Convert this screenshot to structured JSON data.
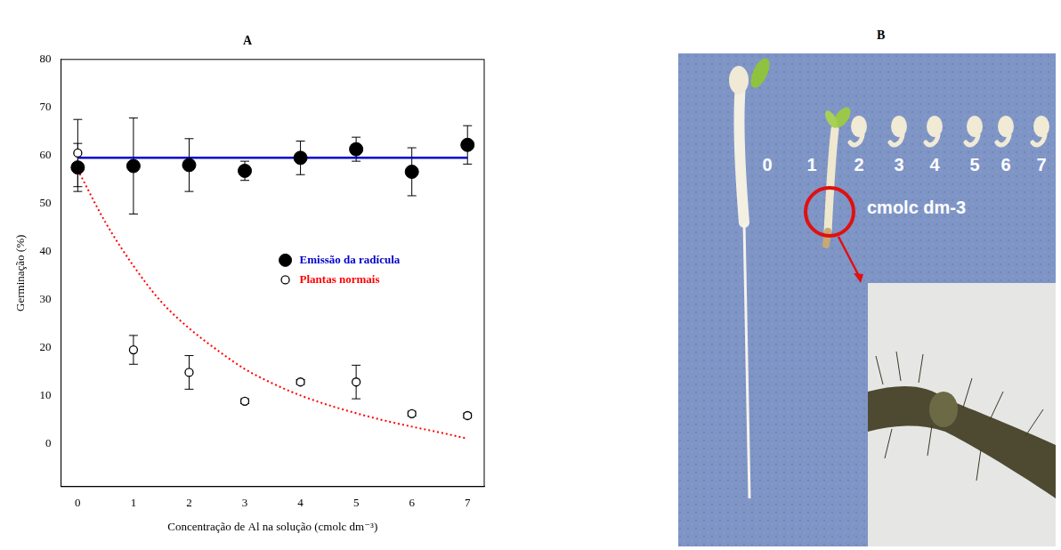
{
  "chart_data": {
    "type": "scatter",
    "title": "A",
    "x_label": "Concentração de Al na solução (cmolc dm⁻³)",
    "y_label": "Germinação (%)",
    "x": [
      0,
      1,
      2,
      3,
      4,
      5,
      6,
      7
    ],
    "xlim": [
      -0.3,
      7.3
    ],
    "xticks": [
      0,
      1,
      2,
      3,
      4,
      5,
      6,
      7
    ],
    "ylim": [
      -9,
      80
    ],
    "yticks": [
      0,
      10,
      20,
      30,
      40,
      50,
      60,
      70,
      80
    ],
    "grid": false,
    "legend": "right",
    "series": [
      {
        "name": "Emissão da radícula",
        "color": "#000000",
        "marker": "filled_circle",
        "values": [
          57.5,
          57.8,
          58,
          56.8,
          59.5,
          61.3,
          56.6,
          62.2
        ],
        "errors": [
          5,
          10,
          5.5,
          2,
          3.5,
          2.5,
          5,
          4
        ],
        "fit": {
          "x": [
            0,
            7
          ],
          "values": [
            59.5,
            59.5
          ],
          "color": "#0000cc",
          "line_style": "solid"
        }
      },
      {
        "name": "Plantas normais",
        "color": "#000000",
        "marker": "open_circle",
        "values": [
          60.5,
          19.5,
          14.8,
          8.8,
          12.8,
          12.8,
          6.2,
          5.8
        ],
        "errors": [
          7,
          3,
          3.5,
          0.5,
          0.5,
          3.5,
          0.5,
          0.5
        ],
        "fit": {
          "x": [
            0,
            0.5,
            1,
            1.5,
            2,
            2.5,
            3,
            3.5,
            4,
            4.5,
            5,
            5.5,
            6,
            6.5,
            7
          ],
          "values": [
            57,
            46,
            37,
            29.5,
            24,
            19.5,
            15.5,
            12.5,
            10,
            8,
            6.3,
            4.8,
            3.5,
            2.3,
            1
          ],
          "color": "#ff0000",
          "line_style": "dotted"
        }
      }
    ]
  },
  "panel_b": {
    "label": "B",
    "concentrations": [
      "0",
      "1",
      "2",
      "3",
      "4",
      "5",
      "6",
      "7"
    ],
    "unit": "cmolc dm-3"
  }
}
